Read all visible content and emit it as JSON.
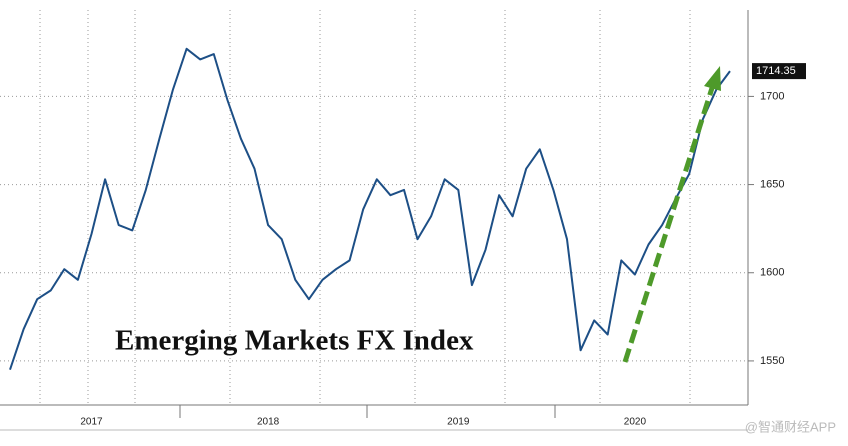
{
  "chart_data": {
    "type": "line",
    "title": "Emerging Markets FX Index",
    "categories": [
      null,
      null,
      null,
      null,
      null,
      null,
      "2017",
      null,
      null,
      null,
      null,
      null,
      null,
      null,
      null,
      null,
      null,
      null,
      null,
      "2018",
      null,
      null,
      null,
      null,
      null,
      null,
      null,
      null,
      null,
      null,
      null,
      null,
      null,
      "2019",
      null,
      null,
      null,
      null,
      null,
      null,
      null,
      null,
      null,
      null,
      null,
      null,
      "2020",
      null,
      null,
      null,
      null,
      null,
      null,
      null
    ],
    "series": [
      {
        "name": "Emerging Markets FX Index",
        "color": "#1d4f86",
        "values": [
          1545,
          1568,
          1585,
          1590,
          1602,
          1596,
          1622,
          1653,
          1627,
          1624,
          1647,
          1676,
          1704,
          1727,
          1721,
          1724,
          1698,
          1676,
          1659,
          1627,
          1619,
          1596,
          1585,
          1596,
          1602,
          1607,
          1636,
          1653,
          1644,
          1647,
          1619,
          1632,
          1653,
          1647,
          1593,
          1613,
          1644,
          1632,
          1659,
          1670,
          1647,
          1619,
          1556,
          1573,
          1565,
          1607,
          1599,
          1616,
          1627,
          1642,
          1656,
          1687,
          1704,
          1714.35
        ]
      }
    ],
    "last_value": 1714.35,
    "ylim": [
      1525,
      1749
    ],
    "yticks": [
      1550,
      1600,
      1650,
      1700
    ],
    "grid": true,
    "watermark": "@智通财经APP"
  }
}
